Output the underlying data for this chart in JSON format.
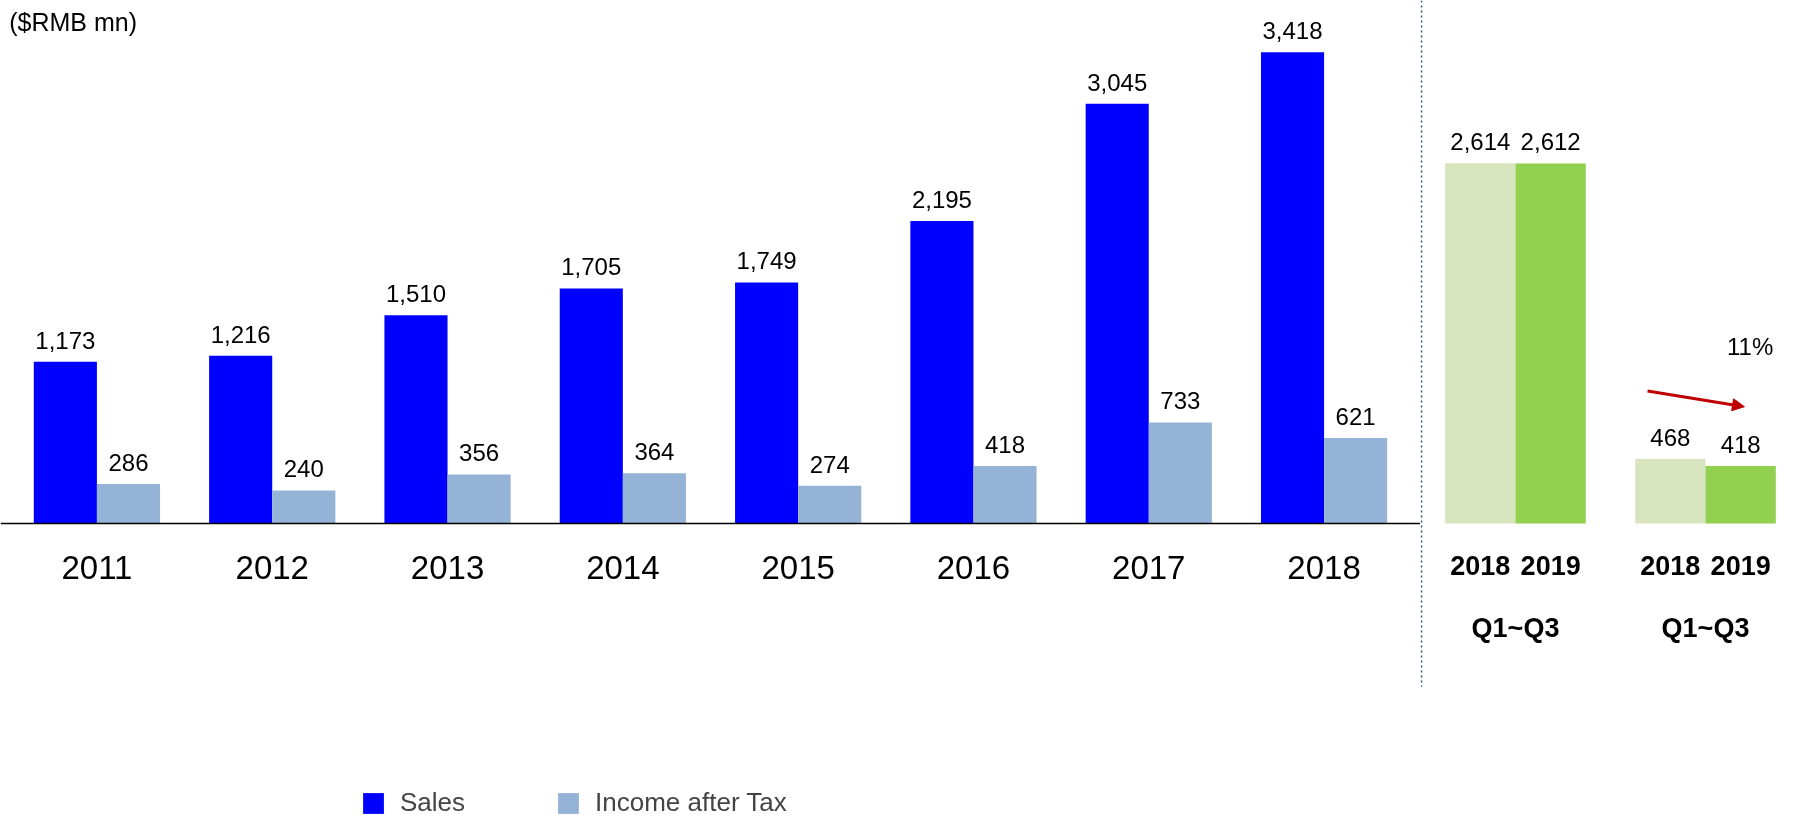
{
  "chart_data": [
    {
      "type": "bar",
      "title": "($RMB mn)",
      "categories": [
        "2011",
        "2012",
        "2013",
        "2014",
        "2015",
        "2016",
        "2017",
        "2018"
      ],
      "series": [
        {
          "name": "Sales",
          "color": "#0000ff",
          "values": [
            1173,
            1216,
            1510,
            1705,
            1749,
            2195,
            3045,
            3418
          ],
          "value_labels": [
            "1,173",
            "1,216",
            "1,510",
            "1,705",
            "1,749",
            "2,195",
            "3,045",
            "3,418"
          ]
        },
        {
          "name": "Income after Tax",
          "color": "#95b3d7",
          "values": [
            286,
            240,
            356,
            364,
            274,
            418,
            733,
            621
          ],
          "value_labels": [
            "286",
            "240",
            "356",
            "364",
            "274",
            "418",
            "733",
            "621"
          ]
        }
      ],
      "legend": "bottom"
    },
    {
      "type": "bar",
      "categories": [
        "2018",
        "2019",
        "2018",
        "2019"
      ],
      "values": [
        2614,
        2612,
        468,
        418
      ],
      "value_labels": [
        "2,614",
        "2,612",
        "468",
        "418"
      ],
      "colors": [
        "#d7e4bd",
        "#92d050",
        "#d7e4bd",
        "#92d050"
      ],
      "annotations": [
        "Q1~Q3",
        "Q1~Q3",
        "11%"
      ]
    }
  ]
}
